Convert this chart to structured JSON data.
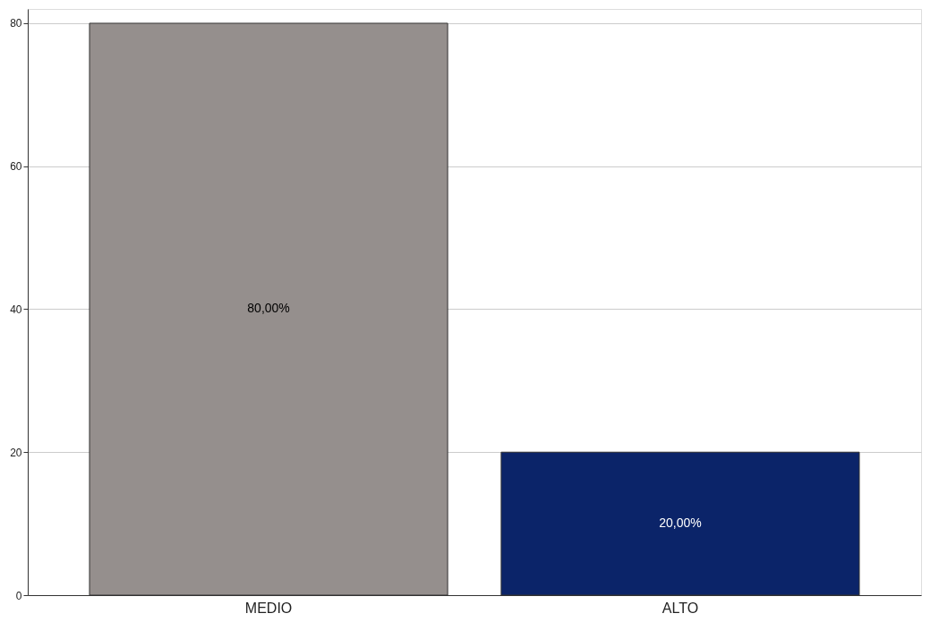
{
  "chart_data": {
    "type": "bar",
    "categories": [
      "MEDIO",
      "ALTO"
    ],
    "values": [
      80,
      20
    ],
    "colors": [
      "#958f8d",
      "#0b2469"
    ],
    "value_labels": [
      "80,00%",
      "20,00%"
    ],
    "ylim": [
      0,
      82
    ],
    "yticks": [
      0,
      20,
      40,
      60,
      80
    ],
    "grid": "y",
    "legend": false
  }
}
